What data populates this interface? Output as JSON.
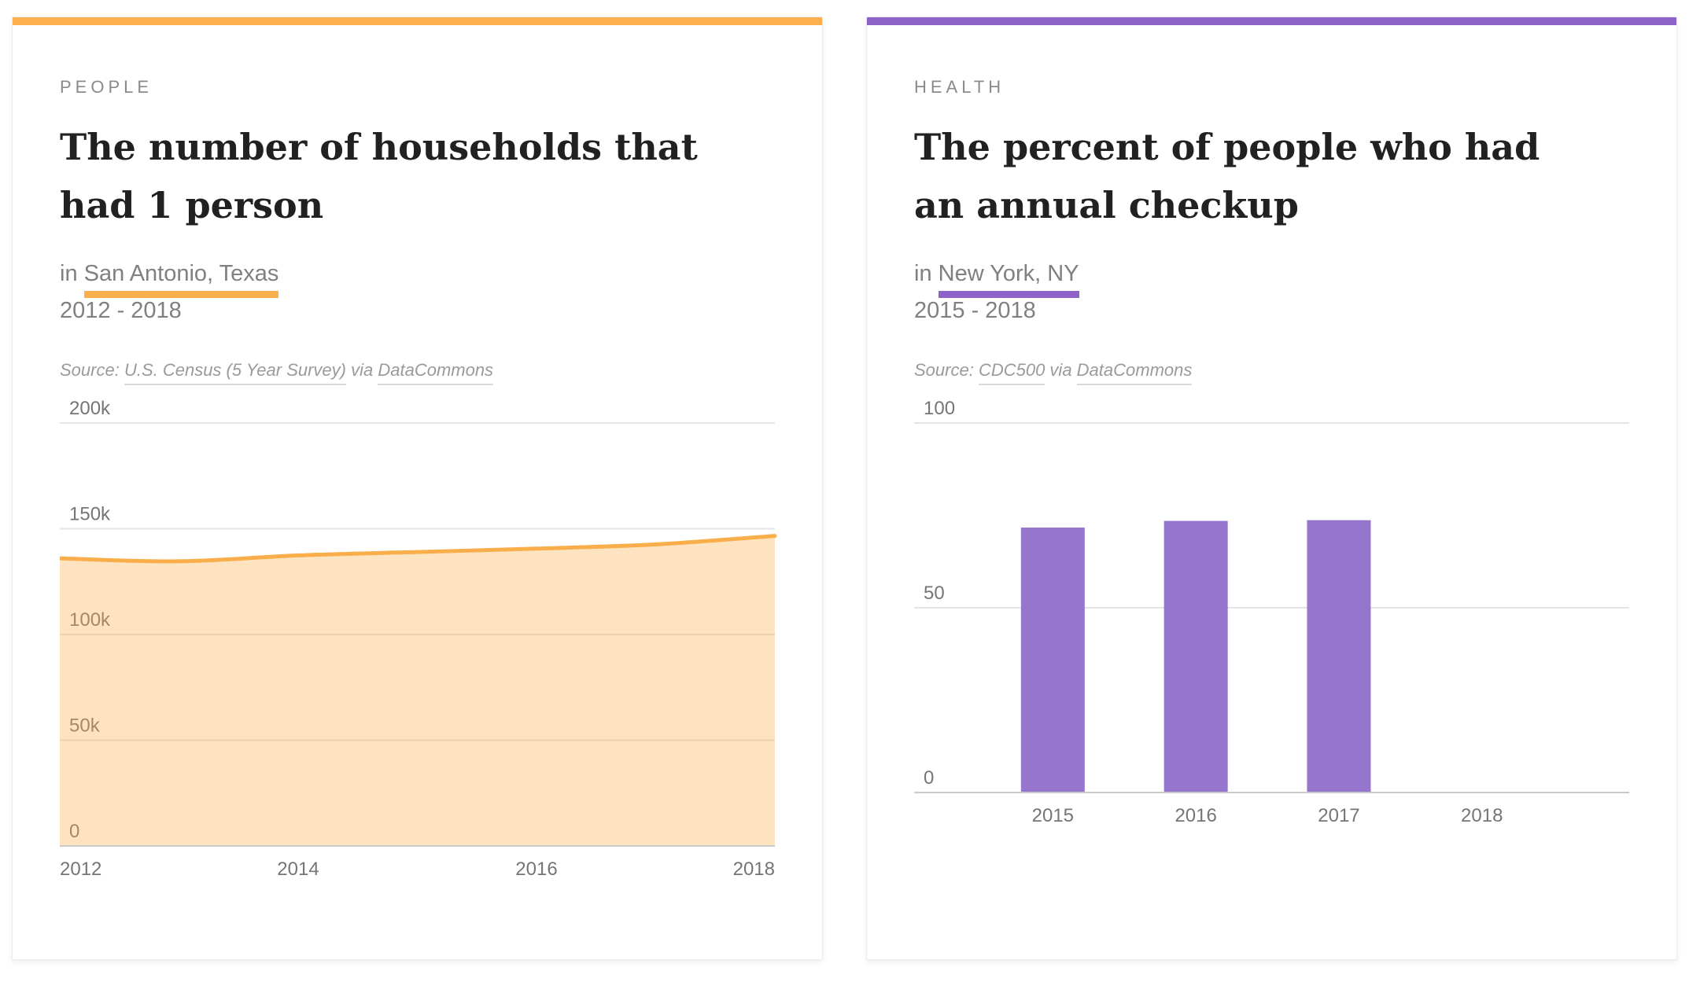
{
  "page": {
    "background": "#ffffff"
  },
  "cards": [
    {
      "category": "PEOPLE",
      "title": "The number of households that had 1 person",
      "location_prefix": "in ",
      "location": "San Antonio, Texas",
      "date_range": "2012 - 2018",
      "accent_color": "#FBAF4D",
      "source": {
        "prefix": "Source: ",
        "name": "U.S. Census (5 Year Survey)",
        "via": " via ",
        "provider": "DataCommons"
      }
    },
    {
      "category": "HEALTH",
      "title": "The percent of people who had an annual checkup",
      "location_prefix": "in ",
      "location": "New York, NY",
      "date_range": "2015 - 2018",
      "accent_color": "#8D62C9",
      "source": {
        "prefix": "Source: ",
        "name": "CDC500",
        "via": " via ",
        "provider": "DataCommons"
      }
    }
  ],
  "chart_data": [
    {
      "type": "area",
      "title": "The number of households that had 1 person",
      "subtitle": "in San Antonio, Texas",
      "x": [
        2012,
        2013,
        2014,
        2015,
        2016,
        2017,
        2018
      ],
      "values": [
        136000,
        134600,
        137400,
        139000,
        140600,
        142600,
        146600
      ],
      "xlabel": "",
      "ylabel": "",
      "ylim": [
        0,
        200000
      ],
      "ytick_values": [
        0,
        50000,
        100000,
        150000,
        200000
      ],
      "ytick_labels": [
        "0",
        "50k",
        "100k",
        "150k",
        "200k"
      ],
      "xtick_labels": [
        "2012",
        "2014",
        "2016",
        "2018"
      ],
      "grid": true,
      "legend": "none",
      "line_color": "#F9AE4B",
      "fill_color": "rgba(249,174,75,0.35)"
    },
    {
      "type": "bar",
      "title": "The percent of people who had an annual checkup",
      "subtitle": "in New York, NY",
      "categories": [
        "2015",
        "2016",
        "2017",
        "2018"
      ],
      "values": [
        71.7,
        73.5,
        73.7,
        null
      ],
      "xlabel": "",
      "ylabel": "",
      "ylim": [
        0,
        100
      ],
      "ytick_values": [
        0,
        50,
        100
      ],
      "ytick_labels": [
        "0",
        "50",
        "100"
      ],
      "grid": true,
      "legend": "none",
      "bar_color": "#9575CD"
    }
  ]
}
